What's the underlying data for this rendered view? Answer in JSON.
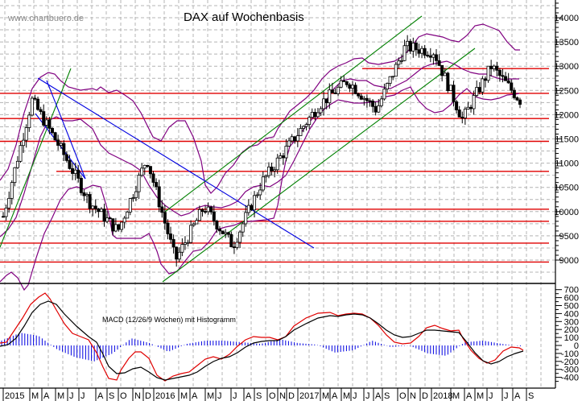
{
  "header": {
    "watermark": "www.chartbuero.de",
    "title": "DAX auf Wochenbasis"
  },
  "macd_label": "MACD (12/26/9 Wochen) mit Histogramm",
  "colors": {
    "support_resistance": "#e00000",
    "trend_channel": "#008000",
    "downtrend": "#0000e0",
    "bollinger": "#800080",
    "macd_line": "#e00000",
    "signal_line": "#000000",
    "histogram": "#0000e0",
    "grid": "#b4b4b4"
  },
  "chart_data": [
    {
      "type": "candlestick",
      "title": "DAX auf Wochenbasis",
      "ylabel": "",
      "ylim": [
        8500,
        14500
      ],
      "yticks": [
        9000,
        9500,
        10000,
        10500,
        11000,
        11500,
        12000,
        12500,
        13000,
        13500,
        14000
      ],
      "x_ticks": [
        "2015",
        "M",
        "A",
        "M",
        "J",
        "J",
        "A",
        "S",
        "O",
        "N",
        "D",
        "2016",
        "M",
        "A",
        "M",
        "J",
        "J",
        "A",
        "S",
        "O",
        "N",
        "D",
        "2017",
        "M",
        "A",
        "M",
        "J",
        "J",
        "A",
        "S",
        "O",
        "N",
        "D",
        "2018",
        "M",
        "A",
        "M",
        "J",
        "J",
        "A",
        "S"
      ],
      "horizontal_levels": [
        12950,
        12440,
        11920,
        11450,
        10830,
        10050,
        9800,
        9350,
        8960
      ],
      "overlays": [
        "Bollinger Bands",
        "Trend channel (green)",
        "Downtrend lines (blue)"
      ],
      "approx_weekly_close_path": [
        {
          "period": "2015-02",
          "value": 9900
        },
        {
          "period": "2015-04",
          "value": 12300
        },
        {
          "period": "2015-06",
          "value": 11300
        },
        {
          "period": "2015-08",
          "value": 10200
        },
        {
          "period": "2015-09",
          "value": 9600
        },
        {
          "period": "2015-12",
          "value": 11100
        },
        {
          "period": "2016-02",
          "value": 9000
        },
        {
          "period": "2016-04",
          "value": 10100
        },
        {
          "period": "2016-06",
          "value": 9300
        },
        {
          "period": "2016-09",
          "value": 10600
        },
        {
          "period": "2016-12",
          "value": 11400
        },
        {
          "period": "2017-03",
          "value": 12200
        },
        {
          "period": "2017-06",
          "value": 12700
        },
        {
          "period": "2017-08",
          "value": 12100
        },
        {
          "period": "2017-11",
          "value": 13400
        },
        {
          "period": "2018-01",
          "value": 13300
        },
        {
          "period": "2018-03",
          "value": 11900
        },
        {
          "period": "2018-05",
          "value": 13000
        },
        {
          "period": "2018-07",
          "value": 12300
        }
      ]
    },
    {
      "type": "line",
      "title": "MACD (12/26/9 Wochen) mit Histogramm",
      "ylim": [
        -450,
        750
      ],
      "yticks": [
        700,
        600,
        500,
        400,
        300,
        200,
        100,
        0,
        -100,
        -200,
        -300,
        -400
      ],
      "series": [
        {
          "name": "MACD",
          "color": "#e00000",
          "values": [
            100,
            350,
            680,
            500,
            200,
            -100,
            -380,
            -200,
            -80,
            -250,
            -380,
            -170,
            50,
            200,
            160,
            380,
            430,
            430,
            200,
            230,
            280,
            200,
            160,
            -50,
            -200,
            -150,
            80,
            80,
            20
          ]
        },
        {
          "name": "Signal",
          "color": "#000000",
          "values": [
            50,
            250,
            580,
            450,
            250,
            0,
            -260,
            -210,
            -160,
            -320,
            -300,
            -180,
            0,
            150,
            150,
            320,
            400,
            420,
            250,
            230,
            260,
            220,
            160,
            -20,
            -120,
            -160,
            10,
            50,
            30
          ]
        },
        {
          "name": "Histogramm",
          "color": "#0000e0",
          "values": [
            60,
            160,
            120,
            -50,
            -150,
            -200,
            -100,
            90,
            30,
            -80,
            20,
            60,
            60,
            40,
            20,
            80,
            30,
            10,
            -90,
            -60,
            60,
            -20,
            0,
            -100,
            -130,
            40,
            60,
            20,
            -10
          ]
        }
      ]
    }
  ]
}
